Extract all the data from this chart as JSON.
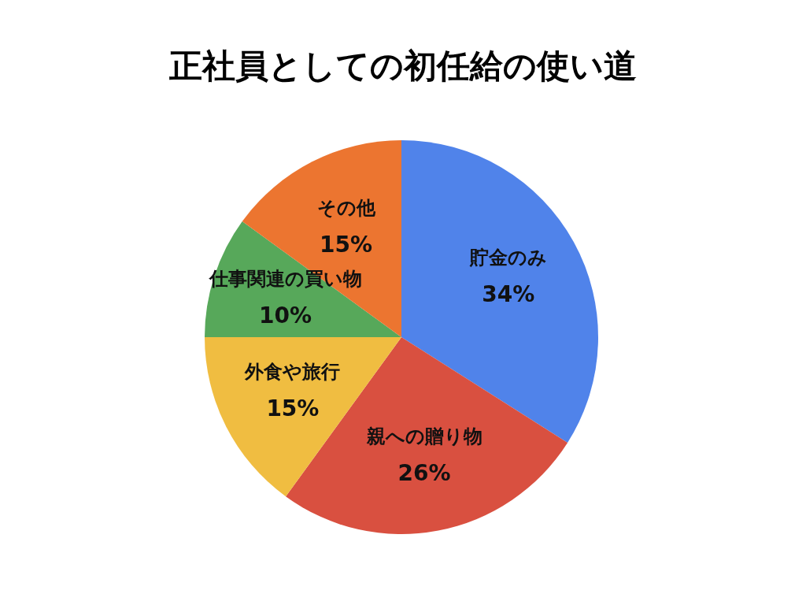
{
  "chart_data": {
    "type": "pie",
    "title": "正社員としての初任給の使い道",
    "categories": [
      "貯金のみ",
      "親への贈り物",
      "外食や旅行",
      "仕事関連の買い物",
      "その他"
    ],
    "values": [
      34,
      26,
      15,
      10,
      15
    ],
    "value_labels": [
      "34%",
      "26%",
      "15%",
      "10%",
      "15%"
    ],
    "colors": [
      "#5083ea",
      "#d95040",
      "#f0bd41",
      "#57a85a",
      "#ec7530"
    ]
  }
}
